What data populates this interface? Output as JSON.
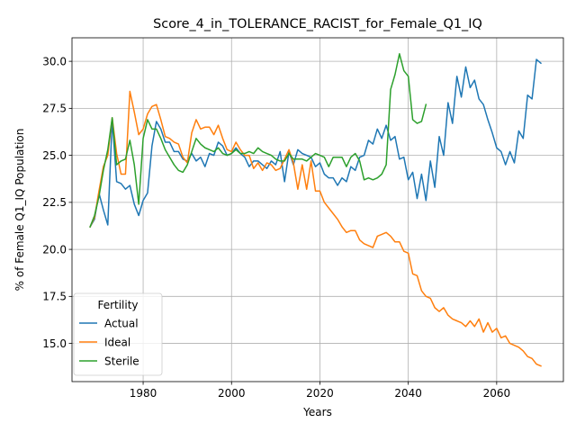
{
  "chart_data": {
    "type": "line",
    "title": "Score_4_in_TOLERANCE_RACIST_for_Female_Q1_IQ",
    "xlabel": "Years",
    "ylabel": "% of Female Q1_IQ Population",
    "xlim": [
      1963.9,
      2075.1
    ],
    "ylim": [
      12.97,
      31.25
    ],
    "xticks": [
      1980,
      2000,
      2020,
      2040,
      2060
    ],
    "yticks": [
      15.0,
      17.5,
      20.0,
      22.5,
      25.0,
      27.5,
      30.0
    ],
    "xtick_labels": [
      "1980",
      "2000",
      "2020",
      "2040",
      "2060"
    ],
    "ytick_labels": [
      "15.0",
      "17.5",
      "20.0",
      "22.5",
      "25.0",
      "27.5",
      "30.0"
    ],
    "grid": true,
    "legend": {
      "title": "Fertility",
      "placement": "lower-left"
    },
    "series": [
      {
        "name": "Actual",
        "color": "#1f77b4",
        "x": [
          1968,
          1969,
          1970,
          1971,
          1972,
          1973,
          1974,
          1975,
          1976,
          1977,
          1978,
          1979,
          1980,
          1981,
          1982,
          1983,
          1984,
          1985,
          1986,
          1987,
          1988,
          1989,
          1990,
          1991,
          1992,
          1993,
          1994,
          1995,
          1996,
          1997,
          1998,
          1999,
          2000,
          2001,
          2002,
          2003,
          2004,
          2005,
          2006,
          2007,
          2008,
          2009,
          2010,
          2011,
          2012,
          2013,
          2014,
          2015,
          2016,
          2017,
          2018,
          2019,
          2020,
          2021,
          2022,
          2023,
          2024,
          2025,
          2026,
          2027,
          2028,
          2029,
          2030,
          2031,
          2032,
          2033,
          2034,
          2035,
          2036,
          2037,
          2038,
          2039,
          2040,
          2041,
          2042,
          2043,
          2044,
          2045,
          2046,
          2047,
          2048,
          2049,
          2050,
          2051,
          2052,
          2053,
          2054,
          2055,
          2056,
          2057,
          2058,
          2059,
          2060,
          2061,
          2062,
          2063,
          2064,
          2065,
          2066,
          2067,
          2068,
          2069,
          2070
        ],
        "values": [
          21.2,
          21.6,
          23.0,
          22.1,
          21.3,
          26.9,
          23.6,
          23.5,
          23.2,
          23.4,
          22.4,
          21.8,
          22.6,
          23.0,
          25.5,
          26.8,
          26.4,
          25.7,
          25.7,
          25.2,
          25.2,
          24.8,
          24.7,
          25.1,
          24.7,
          24.9,
          24.4,
          25.1,
          25.0,
          25.7,
          25.5,
          25.0,
          25.1,
          25.4,
          25.1,
          24.9,
          24.4,
          24.7,
          24.7,
          24.5,
          24.3,
          24.7,
          24.5,
          25.2,
          23.6,
          25.2,
          24.5,
          25.3,
          25.1,
          25.0,
          24.9,
          24.4,
          24.6,
          24.0,
          23.8,
          23.8,
          23.4,
          23.8,
          23.6,
          24.4,
          24.2,
          24.9,
          25.0,
          25.8,
          25.6,
          26.4,
          25.9,
          26.6,
          25.8,
          26.0,
          24.8,
          24.9,
          23.7,
          24.1,
          22.7,
          24.0,
          22.6,
          24.7,
          23.3,
          26.0,
          25.0,
          27.8,
          26.7,
          29.2,
          28.1,
          29.7,
          28.6,
          29.0,
          28.0,
          27.7,
          26.9,
          26.2,
          25.4,
          25.2,
          24.5,
          25.2,
          24.6,
          26.3,
          25.9,
          28.2,
          28.0,
          30.1,
          29.9
        ]
      },
      {
        "name": "Ideal",
        "color": "#ff7f0e",
        "x": [
          1968,
          1969,
          1970,
          1971,
          1972,
          1973,
          1974,
          1975,
          1976,
          1977,
          1978,
          1979,
          1980,
          1981,
          1982,
          1983,
          1984,
          1985,
          1986,
          1987,
          1988,
          1989,
          1990,
          1991,
          1992,
          1993,
          1994,
          1995,
          1996,
          1997,
          1998,
          1999,
          2000,
          2001,
          2002,
          2003,
          2004,
          2005,
          2006,
          2007,
          2008,
          2009,
          2010,
          2011,
          2012,
          2013,
          2014,
          2015,
          2016,
          2017,
          2018,
          2019,
          2020,
          2021,
          2022,
          2023,
          2024,
          2025,
          2026,
          2027,
          2028,
          2029,
          2030,
          2031,
          2032,
          2033,
          2034,
          2035,
          2036,
          2037,
          2038,
          2039,
          2040,
          2041,
          2042,
          2043,
          2044,
          2045,
          2046,
          2047,
          2048,
          2049,
          2050,
          2051,
          2052,
          2053,
          2054,
          2055,
          2056,
          2057,
          2058,
          2059,
          2060,
          2061,
          2062,
          2063,
          2064,
          2065,
          2066,
          2067,
          2068,
          2069,
          2070
        ],
        "values": [
          21.2,
          21.7,
          23.1,
          24.4,
          25.0,
          27.0,
          25.1,
          24.0,
          24.0,
          28.4,
          27.3,
          26.1,
          26.4,
          27.2,
          27.6,
          27.7,
          26.9,
          26.0,
          25.9,
          25.7,
          25.6,
          24.9,
          24.6,
          26.2,
          26.9,
          26.4,
          26.5,
          26.5,
          26.1,
          26.6,
          25.9,
          25.3,
          25.2,
          25.7,
          25.3,
          25.0,
          25.0,
          24.3,
          24.6,
          24.2,
          24.6,
          24.5,
          24.2,
          24.3,
          24.8,
          25.3,
          24.6,
          23.2,
          24.5,
          23.2,
          24.7,
          23.1,
          23.1,
          22.5,
          22.2,
          21.9,
          21.6,
          21.2,
          20.9,
          21.0,
          21.0,
          20.5,
          20.3,
          20.2,
          20.1,
          20.7,
          20.8,
          20.9,
          20.7,
          20.4,
          20.4,
          19.9,
          19.8,
          18.7,
          18.6,
          17.8,
          17.5,
          17.4,
          16.9,
          16.7,
          16.9,
          16.5,
          16.3,
          16.2,
          16.1,
          15.9,
          16.2,
          15.9,
          16.3,
          15.6,
          16.1,
          15.6,
          15.8,
          15.3,
          15.4,
          15.0,
          14.9,
          14.8,
          14.6,
          14.3,
          14.2,
          13.9,
          13.8
        ]
      },
      {
        "name": "Sterile",
        "color": "#2ca02c",
        "x": [
          1968,
          1969,
          1970,
          1971,
          1972,
          1973,
          1974,
          1975,
          1976,
          1977,
          1978,
          1979,
          1980,
          1981,
          1982,
          1983,
          1984,
          1985,
          1986,
          1987,
          1988,
          1989,
          1990,
          1991,
          1992,
          1993,
          1994,
          1995,
          1996,
          1997,
          1998,
          1999,
          2000,
          2001,
          2002,
          2003,
          2004,
          2005,
          2006,
          2007,
          2008,
          2009,
          2010,
          2011,
          2012,
          2013,
          2014,
          2015,
          2016,
          2017,
          2018,
          2019,
          2020,
          2021,
          2022,
          2023,
          2024,
          2025,
          2026,
          2027,
          2028,
          2029,
          2030,
          2031,
          2032,
          2033,
          2034,
          2035,
          2036,
          2037,
          2038,
          2039,
          2040,
          2041,
          2042,
          2043,
          2044
        ],
        "values": [
          21.2,
          21.8,
          22.8,
          24.2,
          25.3,
          27.0,
          24.5,
          24.7,
          24.8,
          25.8,
          24.5,
          22.4,
          25.9,
          26.9,
          26.4,
          26.4,
          25.9,
          25.3,
          24.9,
          24.5,
          24.2,
          24.1,
          24.5,
          25.2,
          25.9,
          25.6,
          25.4,
          25.3,
          25.2,
          25.4,
          25.1,
          25.0,
          25.1,
          25.3,
          25.1,
          25.1,
          25.2,
          25.1,
          25.4,
          25.2,
          25.1,
          25.0,
          24.8,
          24.7,
          24.7,
          25.1,
          24.8,
          24.8,
          24.8,
          24.7,
          24.9,
          25.1,
          25.0,
          24.9,
          24.4,
          24.9,
          24.9,
          24.9,
          24.4,
          24.9,
          25.1,
          24.7,
          23.7,
          23.8,
          23.7,
          23.8,
          24.0,
          24.5,
          28.5,
          29.3,
          30.4,
          29.5,
          29.2,
          26.9,
          26.7,
          26.8,
          27.7
        ]
      }
    ]
  }
}
